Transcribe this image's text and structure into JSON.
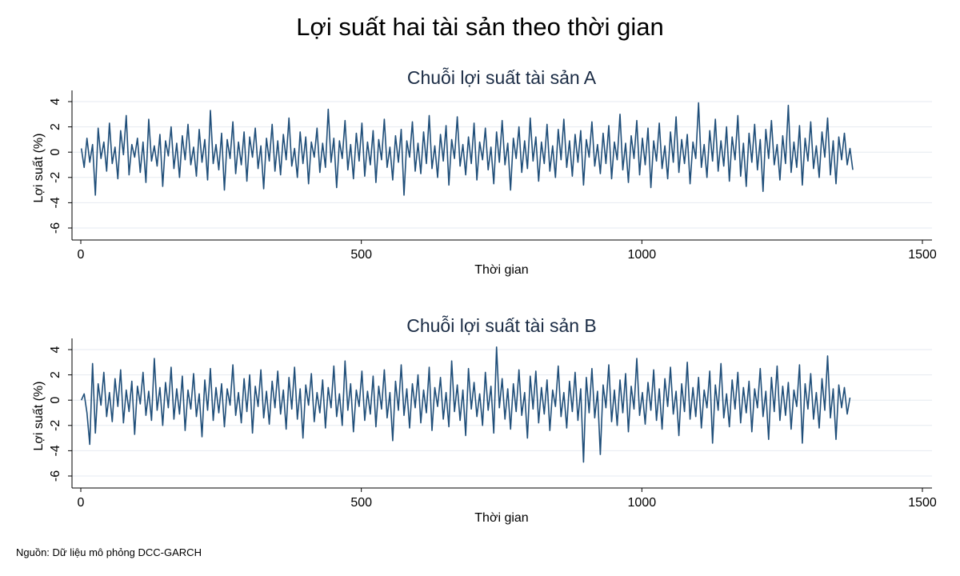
{
  "title": "Lợi suất hai tài sản theo thời gian",
  "source": "Nguồn: Dữ liệu mô phỏng DCC-GARCH",
  "colors": {
    "series": "#1f4e79",
    "grid": "#e6eaf0",
    "axis": "#000000"
  },
  "chart_data": [
    {
      "type": "line",
      "title": "Chuỗi lợi suất tài sản A",
      "xlabel": "Thời gian",
      "ylabel": "Lợi suất (%)",
      "xlim": [
        0,
        1500
      ],
      "ylim": [
        -6,
        4
      ],
      "xticks": [
        0,
        500,
        1000,
        1500
      ],
      "yticks": [
        4,
        2,
        0,
        -2,
        -4,
        -6
      ],
      "grid": true,
      "series": [
        {
          "x_start": 1,
          "x_step": 5,
          "y": [
            0.3,
            -1.2,
            1.1,
            -0.8,
            0.6,
            -3.4,
            1.9,
            -0.5,
            0.8,
            -1.5,
            2.3,
            -0.9,
            0.4,
            -2.1,
            1.7,
            -0.2,
            2.9,
            -1.8,
            0.6,
            -0.4,
            1.1,
            -1.6,
            0.8,
            -2.4,
            2.6,
            -0.7,
            0.5,
            -1.1,
            1.4,
            -2.7,
            0.9,
            -0.3,
            2.0,
            -1.3,
            0.7,
            -2.0,
            1.3,
            -0.6,
            2.2,
            -1.0,
            0.4,
            -1.9,
            1.8,
            -0.8,
            1.0,
            -2.2,
            3.3,
            -0.9,
            0.6,
            -1.4,
            1.5,
            -3.0,
            1.0,
            -0.5,
            2.4,
            -1.7,
            0.8,
            -1.0,
            1.6,
            -2.3,
            1.2,
            -0.4,
            1.9,
            -1.3,
            0.5,
            -2.9,
            1.1,
            -0.7,
            2.2,
            -1.5,
            0.9,
            -1.8,
            1.4,
            -0.6,
            2.7,
            -1.1,
            0.3,
            -2.0,
            1.6,
            -0.9,
            1.2,
            -2.5,
            0.8,
            -0.4,
            1.9,
            -1.6,
            0.7,
            -1.2,
            3.4,
            -0.8,
            1.1,
            -2.8,
            0.9,
            -0.5,
            2.5,
            -1.4,
            0.6,
            -2.1,
            1.5,
            -0.7,
            2.3,
            -1.9,
            0.8,
            -1.0,
            1.7,
            -2.4,
            1.0,
            -0.6,
            2.6,
            -1.2,
            0.4,
            -2.2,
            1.3,
            -0.8,
            1.8,
            -3.4,
            0.9,
            -0.4,
            2.4,
            -1.5,
            0.7,
            -1.7,
            1.6,
            -0.9,
            2.9,
            -1.3,
            0.5,
            -2.0,
            1.4,
            -0.7,
            2.1,
            -2.6,
            1.0,
            -0.5,
            2.8,
            -1.1,
            0.6,
            -1.8,
            1.2,
            -0.9,
            2.3,
            -2.2,
            0.8,
            -0.6,
            1.9,
            -1.4,
            0.4,
            -2.5,
            1.6,
            -0.8,
            2.5,
            -1.0,
            0.7,
            -3.0,
            1.1,
            -0.5,
            2.0,
            -1.6,
            0.9,
            -1.3,
            2.7,
            -0.7,
            1.2,
            -2.3,
            0.8,
            -0.9,
            2.2,
            -1.5,
            0.5,
            -2.0,
            1.8,
            -0.6,
            2.6,
            -1.2,
            0.9,
            -1.9,
            1.4,
            -0.8,
            1.7,
            -2.6,
            1.0,
            -0.4,
            2.4,
            -1.1,
            0.6,
            -1.7,
            1.5,
            -0.9,
            2.1,
            -2.1,
            0.8,
            -0.6,
            3.0,
            -1.4,
            0.7,
            -2.4,
            1.3,
            -0.5,
            2.5,
            -1.8,
            1.1,
            -1.0,
            1.9,
            -2.8,
            0.9,
            -0.7,
            2.3,
            -1.3,
            0.5,
            -2.1,
            1.6,
            -0.8,
            2.8,
            -1.6,
            1.0,
            -0.9,
            1.4,
            -2.5,
            0.8,
            -0.5,
            3.9,
            -1.2,
            0.6,
            -2.0,
            1.7,
            -0.7,
            2.6,
            -1.5,
            0.9,
            -1.1,
            2.0,
            -2.3,
            1.2,
            -0.6,
            2.9,
            -1.9,
            0.7,
            -2.7,
            1.5,
            -0.8,
            2.2,
            -1.4,
            1.0,
            -3.1,
            1.8,
            -0.5,
            2.5,
            -1.0,
            0.6,
            -2.2,
            1.3,
            -0.9,
            3.7,
            -1.6,
            0.8,
            -1.2,
            2.1,
            -2.6,
            1.1,
            -0.7,
            2.4,
            -1.3,
            0.5,
            -2.0,
            1.6,
            -0.4,
            2.7,
            -1.8,
            0.9,
            -2.5,
            1.2,
            -0.6,
            1.5,
            -1.0,
            0.3,
            -1.4
          ]
        }
      ]
    },
    {
      "type": "line",
      "title": "Chuỗi lợi suất tài sản B",
      "xlabel": "Thời gian",
      "ylabel": "Lợi suất (%)",
      "xlim": [
        0,
        1500
      ],
      "ylim": [
        -6,
        4
      ],
      "xticks": [
        0,
        500,
        1000,
        1500
      ],
      "yticks": [
        4,
        2,
        0,
        -2,
        -4,
        -6
      ],
      "grid": true,
      "series": [
        {
          "x_start": 1,
          "x_step": 5,
          "y": [
            0.0,
            0.5,
            -1.0,
            -3.5,
            2.9,
            -2.6,
            1.3,
            -0.4,
            2.2,
            -1.3,
            0.6,
            -1.7,
            1.7,
            -0.5,
            2.4,
            -1.8,
            0.8,
            -0.9,
            1.5,
            -2.7,
            1.1,
            -0.3,
            2.2,
            -1.2,
            0.7,
            -1.6,
            3.3,
            -0.8,
            1.0,
            -2.0,
            1.4,
            -0.6,
            2.6,
            -1.5,
            0.9,
            -1.1,
            1.9,
            -2.4,
            0.8,
            -0.7,
            2.1,
            -1.3,
            0.5,
            -2.9,
            1.6,
            -0.8,
            2.5,
            -1.6,
            1.0,
            -1.0,
            1.3,
            -2.1,
            0.9,
            -0.4,
            2.8,
            -1.2,
            0.6,
            -1.8,
            1.7,
            -0.9,
            2.0,
            -2.6,
            1.1,
            -0.5,
            2.4,
            -1.4,
            0.7,
            -1.9,
            1.5,
            -0.6,
            2.3,
            -1.1,
            0.8,
            -2.3,
            1.8,
            -0.7,
            2.6,
            -1.5,
            0.9,
            -3.0,
            1.2,
            -0.4,
            2.1,
            -1.7,
            0.6,
            -1.0,
            1.6,
            -2.2,
            1.0,
            -0.6,
            2.7,
            -1.3,
            0.5,
            -2.0,
            3.1,
            -0.8,
            1.3,
            -2.5,
            0.8,
            -0.5,
            2.3,
            -1.6,
            0.7,
            -1.1,
            1.9,
            -2.1,
            1.1,
            -0.7,
            2.4,
            -1.4,
            0.6,
            -3.2,
            1.5,
            -0.8,
            2.8,
            -1.2,
            0.9,
            -2.2,
            1.3,
            -0.6,
            2.0,
            -1.8,
            0.8,
            -1.0,
            2.6,
            -2.4,
            1.0,
            -0.5,
            1.8,
            -1.5,
            0.6,
            -2.1,
            3.1,
            -0.9,
            1.2,
            -1.6,
            0.8,
            -2.8,
            2.5,
            -0.7,
            1.4,
            -1.3,
            0.5,
            -2.0,
            2.2,
            -0.8,
            1.1,
            -2.6,
            4.2,
            -0.6,
            1.7,
            -1.5,
            0.9,
            -2.3,
            1.3,
            -0.9,
            2.4,
            -1.2,
            0.6,
            -3.0,
            1.9,
            -0.7,
            2.3,
            -1.8,
            1.0,
            -1.1,
            1.6,
            -2.4,
            0.8,
            -0.5,
            2.7,
            -1.3,
            0.6,
            -2.2,
            1.5,
            -0.9,
            2.2,
            -1.6,
            0.9,
            -4.9,
            1.8,
            -1.0,
            2.5,
            -1.4,
            0.7,
            -4.3,
            1.2,
            -0.6,
            2.8,
            -1.7,
            0.8,
            -2.0,
            1.6,
            -1.0,
            2.1,
            -2.5,
            1.1,
            -0.7,
            3.3,
            -1.2,
            0.6,
            -1.9,
            1.4,
            -0.8,
            2.4,
            -1.6,
            0.9,
            -2.3,
            1.7,
            -0.5,
            2.6,
            -1.1,
            0.7,
            -2.8,
            1.3,
            -0.9,
            3.0,
            -1.5,
            1.0,
            -1.3,
            1.8,
            -2.2,
            0.8,
            -0.6,
            2.3,
            -3.4,
            1.2,
            -0.8,
            2.9,
            -1.4,
            0.5,
            -2.1,
            1.6,
            -0.7,
            2.2,
            -1.8,
            1.0,
            -1.0,
            1.5,
            -2.5,
            0.9,
            -0.6,
            2.5,
            -1.3,
            0.7,
            -3.1,
            1.8,
            -0.9,
            2.7,
            -1.6,
            1.1,
            -1.2,
            1.4,
            -2.3,
            0.8,
            -0.5,
            2.8,
            -3.4,
            1.3,
            -0.7,
            2.1,
            -1.5,
            0.6,
            -2.2,
            1.7,
            -0.8,
            3.5,
            -1.4,
            0.9,
            -3.1,
            1.2,
            -0.6,
            1.0,
            -1.1,
            0.2
          ]
        }
      ]
    }
  ]
}
